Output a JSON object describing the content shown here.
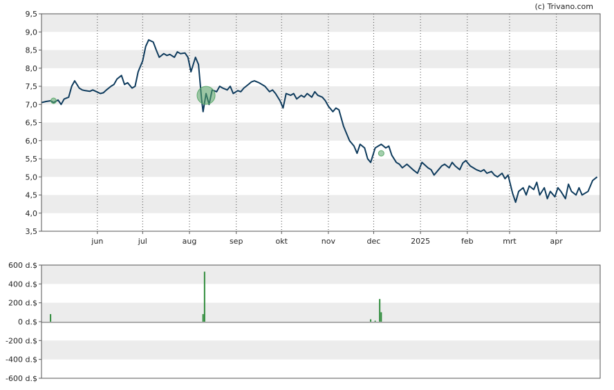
{
  "credit": "(c) Trivano.com",
  "colors": {
    "price_line": "#0d3a5c",
    "volume_bar": "#2e8b3a",
    "marker_fill": "#5aa86a",
    "band": "#ececec",
    "grid_dotted": "#444444"
  },
  "chart_data": [
    {
      "type": "line",
      "name": "price",
      "ylim": [
        3.5,
        9.5
      ],
      "yticks": [
        3.5,
        4.0,
        4.5,
        5.0,
        5.5,
        6.0,
        6.5,
        7.0,
        7.5,
        8.0,
        8.5,
        9.0,
        9.5
      ],
      "ytick_labels": [
        "3,5",
        "4,0",
        "4,5",
        "5,0",
        "5,5",
        "6,0",
        "6,5",
        "7,0",
        "7,5",
        "8,0",
        "8,5",
        "9,0",
        "9,5"
      ],
      "xlim": [
        "2024-04-25",
        "2025-04-30"
      ],
      "xticks": [
        "2024-06-01",
        "2024-07-01",
        "2024-08-01",
        "2024-09-01",
        "2024-10-01",
        "2024-11-01",
        "2024-12-01",
        "2025-01-01",
        "2025-02-01",
        "2025-03-01",
        "2025-04-01"
      ],
      "xtick_labels": [
        "jun",
        "jul",
        "aug",
        "sep",
        "okt",
        "nov",
        "dec",
        "2025",
        "feb",
        "mrt",
        "apr"
      ],
      "grid": "horizontal bands, dotted vertical lines at month ticks",
      "points": [
        [
          "2024-04-25",
          7.05
        ],
        [
          "2024-04-28",
          7.08
        ],
        [
          "2024-05-01",
          7.1
        ],
        [
          "2024-05-03",
          7.05
        ],
        [
          "2024-05-06",
          7.12
        ],
        [
          "2024-05-08",
          7.0
        ],
        [
          "2024-05-10",
          7.15
        ],
        [
          "2024-05-13",
          7.2
        ],
        [
          "2024-05-15",
          7.5
        ],
        [
          "2024-05-17",
          7.65
        ],
        [
          "2024-05-20",
          7.45
        ],
        [
          "2024-05-22",
          7.4
        ],
        [
          "2024-05-24",
          7.38
        ],
        [
          "2024-05-27",
          7.36
        ],
        [
          "2024-05-29",
          7.4
        ],
        [
          "2024-06-03",
          7.3
        ],
        [
          "2024-06-05",
          7.32
        ],
        [
          "2024-06-07",
          7.4
        ],
        [
          "2024-06-10",
          7.5
        ],
        [
          "2024-06-12",
          7.55
        ],
        [
          "2024-06-14",
          7.7
        ],
        [
          "2024-06-17",
          7.8
        ],
        [
          "2024-06-19",
          7.55
        ],
        [
          "2024-06-21",
          7.6
        ],
        [
          "2024-06-24",
          7.45
        ],
        [
          "2024-06-26",
          7.5
        ],
        [
          "2024-06-28",
          7.9
        ],
        [
          "2024-07-01",
          8.2
        ],
        [
          "2024-07-03",
          8.6
        ],
        [
          "2024-07-05",
          8.78
        ],
        [
          "2024-07-08",
          8.72
        ],
        [
          "2024-07-10",
          8.5
        ],
        [
          "2024-07-12",
          8.3
        ],
        [
          "2024-07-15",
          8.4
        ],
        [
          "2024-07-17",
          8.35
        ],
        [
          "2024-07-19",
          8.38
        ],
        [
          "2024-07-22",
          8.3
        ],
        [
          "2024-07-24",
          8.45
        ],
        [
          "2024-07-26",
          8.4
        ],
        [
          "2024-07-29",
          8.42
        ],
        [
          "2024-07-31",
          8.3
        ],
        [
          "2024-08-02",
          7.9
        ],
        [
          "2024-08-05",
          8.3
        ],
        [
          "2024-08-07",
          8.1
        ],
        [
          "2024-08-09",
          7.15
        ],
        [
          "2024-08-10",
          6.8
        ],
        [
          "2024-08-12",
          7.3
        ],
        [
          "2024-08-14",
          7.0
        ],
        [
          "2024-08-16",
          7.4
        ],
        [
          "2024-08-19",
          7.35
        ],
        [
          "2024-08-21",
          7.5
        ],
        [
          "2024-08-23",
          7.45
        ],
        [
          "2024-08-26",
          7.4
        ],
        [
          "2024-08-28",
          7.5
        ],
        [
          "2024-08-30",
          7.3
        ],
        [
          "2024-09-02",
          7.38
        ],
        [
          "2024-09-04",
          7.35
        ],
        [
          "2024-09-06",
          7.45
        ],
        [
          "2024-09-09",
          7.55
        ],
        [
          "2024-09-11",
          7.62
        ],
        [
          "2024-09-13",
          7.65
        ],
        [
          "2024-09-16",
          7.6
        ],
        [
          "2024-09-18",
          7.55
        ],
        [
          "2024-09-20",
          7.5
        ],
        [
          "2024-09-23",
          7.35
        ],
        [
          "2024-09-25",
          7.4
        ],
        [
          "2024-09-27",
          7.3
        ],
        [
          "2024-09-30",
          7.1
        ],
        [
          "2024-10-02",
          6.9
        ],
        [
          "2024-10-04",
          7.3
        ],
        [
          "2024-10-07",
          7.25
        ],
        [
          "2024-10-09",
          7.3
        ],
        [
          "2024-10-11",
          7.15
        ],
        [
          "2024-10-14",
          7.25
        ],
        [
          "2024-10-16",
          7.2
        ],
        [
          "2024-10-18",
          7.3
        ],
        [
          "2024-10-21",
          7.2
        ],
        [
          "2024-10-23",
          7.35
        ],
        [
          "2024-10-25",
          7.25
        ],
        [
          "2024-10-28",
          7.2
        ],
        [
          "2024-10-30",
          7.1
        ],
        [
          "2024-11-01",
          6.95
        ],
        [
          "2024-11-04",
          6.8
        ],
        [
          "2024-11-06",
          6.9
        ],
        [
          "2024-11-08",
          6.85
        ],
        [
          "2024-11-11",
          6.4
        ],
        [
          "2024-11-13",
          6.2
        ],
        [
          "2024-11-15",
          6.0
        ],
        [
          "2024-11-18",
          5.85
        ],
        [
          "2024-11-20",
          5.65
        ],
        [
          "2024-11-22",
          5.9
        ],
        [
          "2024-11-25",
          5.8
        ],
        [
          "2024-11-27",
          5.5
        ],
        [
          "2024-11-29",
          5.4
        ],
        [
          "2024-12-02",
          5.8
        ],
        [
          "2024-12-04",
          5.85
        ],
        [
          "2024-12-06",
          5.9
        ],
        [
          "2024-12-09",
          5.8
        ],
        [
          "2024-12-11",
          5.85
        ],
        [
          "2024-12-13",
          5.6
        ],
        [
          "2024-12-16",
          5.4
        ],
        [
          "2024-12-18",
          5.35
        ],
        [
          "2024-12-20",
          5.25
        ],
        [
          "2024-12-23",
          5.35
        ],
        [
          "2024-12-27",
          5.2
        ],
        [
          "2024-12-30",
          5.1
        ],
        [
          "2025-01-02",
          5.4
        ],
        [
          "2025-01-06",
          5.25
        ],
        [
          "2025-01-08",
          5.2
        ],
        [
          "2025-01-10",
          5.05
        ],
        [
          "2025-01-13",
          5.2
        ],
        [
          "2025-01-15",
          5.3
        ],
        [
          "2025-01-17",
          5.35
        ],
        [
          "2025-01-20",
          5.25
        ],
        [
          "2025-01-22",
          5.4
        ],
        [
          "2025-01-24",
          5.3
        ],
        [
          "2025-01-27",
          5.2
        ],
        [
          "2025-01-29",
          5.38
        ],
        [
          "2025-01-31",
          5.45
        ],
        [
          "2025-02-03",
          5.3
        ],
        [
          "2025-02-05",
          5.25
        ],
        [
          "2025-02-07",
          5.2
        ],
        [
          "2025-02-10",
          5.15
        ],
        [
          "2025-02-12",
          5.2
        ],
        [
          "2025-02-14",
          5.1
        ],
        [
          "2025-02-17",
          5.15
        ],
        [
          "2025-02-19",
          5.05
        ],
        [
          "2025-02-21",
          5.0
        ],
        [
          "2025-02-24",
          5.1
        ],
        [
          "2025-02-26",
          4.95
        ],
        [
          "2025-02-28",
          5.05
        ],
        [
          "2025-03-03",
          4.55
        ],
        [
          "2025-03-05",
          4.3
        ],
        [
          "2025-03-07",
          4.6
        ],
        [
          "2025-03-10",
          4.7
        ],
        [
          "2025-03-12",
          4.5
        ],
        [
          "2025-03-14",
          4.75
        ],
        [
          "2025-03-17",
          4.65
        ],
        [
          "2025-03-19",
          4.85
        ],
        [
          "2025-03-21",
          4.5
        ],
        [
          "2025-03-24",
          4.7
        ],
        [
          "2025-03-26",
          4.4
        ],
        [
          "2025-03-28",
          4.6
        ],
        [
          "2025-03-31",
          4.45
        ],
        [
          "2025-04-02",
          4.7
        ],
        [
          "2025-04-04",
          4.6
        ],
        [
          "2025-04-07",
          4.4
        ],
        [
          "2025-04-09",
          4.8
        ],
        [
          "2025-04-11",
          4.6
        ],
        [
          "2025-04-14",
          4.5
        ],
        [
          "2025-04-16",
          4.7
        ],
        [
          "2025-04-18",
          4.5
        ],
        [
          "2025-04-22",
          4.6
        ],
        [
          "2025-04-25",
          4.9
        ],
        [
          "2025-04-28",
          5.0
        ]
      ],
      "markers": [
        {
          "date": "2024-05-03",
          "value": 7.1,
          "size": "small"
        },
        {
          "date": "2024-08-12",
          "value": 7.25,
          "size": "large"
        },
        {
          "date": "2024-12-06",
          "value": 5.65,
          "size": "small"
        }
      ]
    },
    {
      "type": "bar",
      "name": "volume",
      "ylim": [
        -600,
        600
      ],
      "yticks": [
        -600,
        -400,
        -200,
        0,
        200,
        400,
        600
      ],
      "ytick_labels": [
        "-600 d.$",
        "-400 d.$",
        "-200 d.$",
        "0 d.$",
        "200 d.$",
        "400 d.$",
        "600 d.$"
      ],
      "bars": [
        {
          "date": "2024-05-01",
          "value": 80
        },
        {
          "date": "2024-08-10",
          "value": 80
        },
        {
          "date": "2024-08-11",
          "value": 530
        },
        {
          "date": "2024-11-29",
          "value": 25
        },
        {
          "date": "2024-12-02",
          "value": 10
        },
        {
          "date": "2024-12-05",
          "value": 240
        },
        {
          "date": "2024-12-06",
          "value": 100
        }
      ]
    }
  ]
}
